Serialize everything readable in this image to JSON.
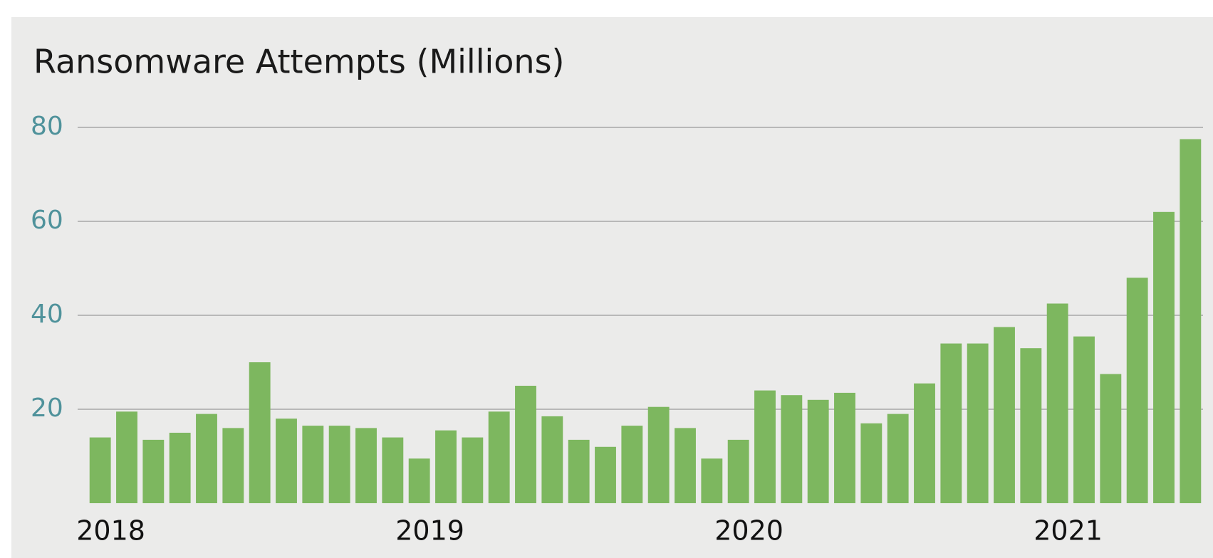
{
  "chart_data": {
    "type": "bar",
    "title": "Ransomware Attempts (Millions)",
    "categories": [
      "2018",
      null,
      null,
      null,
      null,
      null,
      null,
      null,
      null,
      null,
      null,
      null,
      "2019",
      null,
      null,
      null,
      null,
      null,
      null,
      null,
      null,
      null,
      null,
      null,
      "2020",
      null,
      null,
      null,
      null,
      null,
      null,
      null,
      null,
      null,
      null,
      null,
      "2021",
      null,
      null,
      null,
      null,
      null
    ],
    "values": [
      14,
      19.5,
      13.5,
      15,
      19,
      16,
      30,
      18,
      16.5,
      16.5,
      16,
      14,
      9.5,
      15.5,
      14,
      19.5,
      25,
      18.5,
      13.5,
      12,
      16.5,
      20.5,
      16,
      9.5,
      13.5,
      24,
      23,
      22,
      23.5,
      17,
      19,
      25.5,
      34,
      34,
      37.5,
      33,
      42.5,
      35.5,
      27.5,
      48,
      62,
      77.5
    ],
    "color": "#7db75f",
    "ylim": [
      0,
      80
    ],
    "yticks": [
      20,
      40,
      60,
      80
    ],
    "grid": true
  }
}
